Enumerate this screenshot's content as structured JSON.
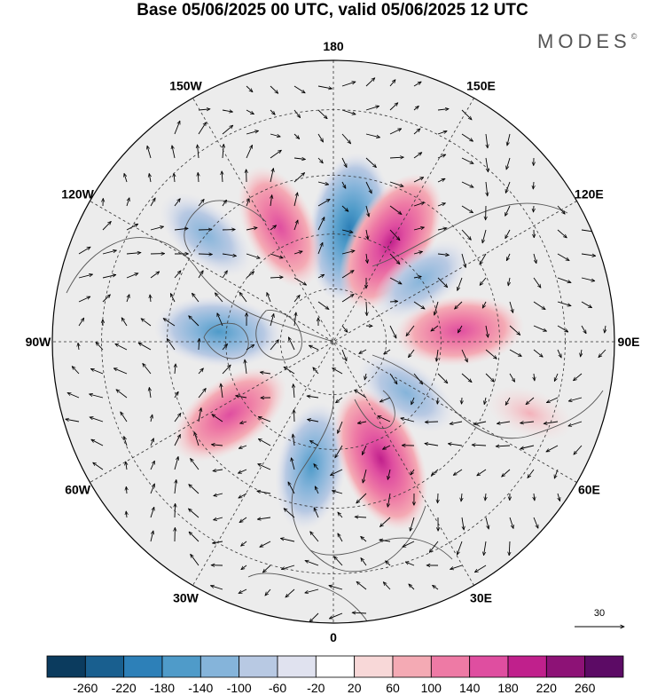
{
  "title": "Base 05/06/2025 00 UTC, valid 05/06/2025 12 UTC",
  "brand": {
    "name": "MODES",
    "mark": "©"
  },
  "map": {
    "projection": "north-polar-stereographic",
    "longitude_labels": [
      {
        "text": "180",
        "lon": 180
      },
      {
        "text": "150E",
        "lon": 150
      },
      {
        "text": "120E",
        "lon": 120
      },
      {
        "text": "90E",
        "lon": 90
      },
      {
        "text": "60E",
        "lon": 60
      },
      {
        "text": "30E",
        "lon": 30
      },
      {
        "text": "0",
        "lon": 0
      },
      {
        "text": "30W",
        "lon": -30
      },
      {
        "text": "60W",
        "lon": -60
      },
      {
        "text": "90W",
        "lon": -90
      },
      {
        "text": "120W",
        "lon": -120
      },
      {
        "text": "150W",
        "lon": -150
      }
    ],
    "anomaly_centers": [
      {
        "sign": "negative",
        "level": 4,
        "lon": 172,
        "lat": 58
      },
      {
        "sign": "positive",
        "level": 4,
        "lon": 150,
        "lat": 58
      },
      {
        "sign": "positive",
        "level": 3,
        "lon": -155,
        "lat": 55
      },
      {
        "sign": "negative",
        "level": 2,
        "lon": -130,
        "lat": 45
      },
      {
        "sign": "negative",
        "level": 3,
        "lon": -95,
        "lat": 58
      },
      {
        "sign": "positive",
        "level": 3,
        "lon": -55,
        "lat": 55
      },
      {
        "sign": "negative",
        "level": 3,
        "lon": -10,
        "lat": 55
      },
      {
        "sign": "positive",
        "level": 4,
        "lon": 22,
        "lat": 55
      },
      {
        "sign": "negative",
        "level": 2,
        "lon": 55,
        "lat": 65
      },
      {
        "sign": "positive",
        "level": 3,
        "lon": 95,
        "lat": 55
      },
      {
        "sign": "negative",
        "level": 2,
        "lon": 125,
        "lat": 60
      },
      {
        "sign": "positive",
        "level": 1,
        "lon": 70,
        "lat": 35
      }
    ]
  },
  "reference_vector": {
    "label": "30"
  },
  "colorbar": {
    "ticks": [
      "-260",
      "-220",
      "-180",
      "-140",
      "-100",
      "-60",
      "-20",
      "20",
      "60",
      "100",
      "140",
      "180",
      "220",
      "260"
    ],
    "colors": [
      "#0b3b5e",
      "#195f8f",
      "#2d80b8",
      "#4f9bc9",
      "#85b4da",
      "#b8c9e3",
      "#e0e2ef",
      "#ffffff",
      "#f8d8d8",
      "#f4aab4",
      "#ee7aa5",
      "#df4ea0",
      "#c0208c",
      "#8d1276",
      "#5c0b65"
    ]
  }
}
